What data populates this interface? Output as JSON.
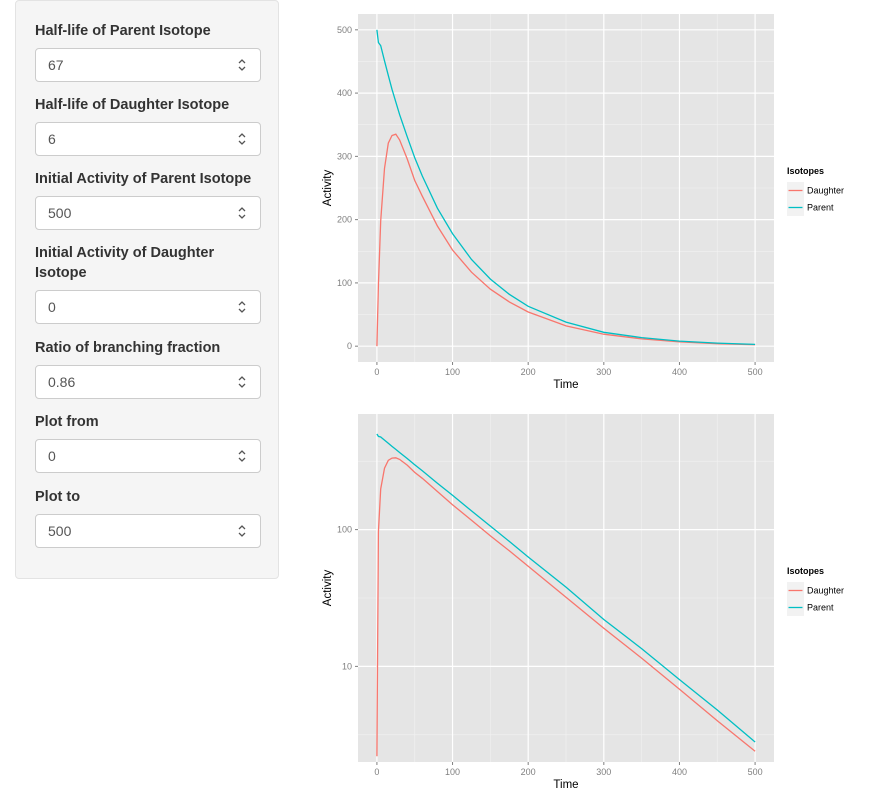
{
  "sidebar": {
    "fields": [
      {
        "label": "Half-life of Parent Isotope",
        "value": "67"
      },
      {
        "label": "Half-life of Daughter Isotope",
        "value": "6"
      },
      {
        "label": "Initial Activity of Parent Isotope",
        "value": "500"
      },
      {
        "label": "Initial Activity of Daughter Isotope",
        "value": "0"
      },
      {
        "label": "Ratio of branching fraction",
        "value": "0.86"
      },
      {
        "label": "Plot from",
        "value": "0"
      },
      {
        "label": "Plot to",
        "value": "500"
      }
    ]
  },
  "colors": {
    "daughter": "#F8766D",
    "parent": "#00BFC4",
    "panel_bg": "#E5E5E5",
    "grid": "#FFFFFF"
  },
  "chart_data": [
    {
      "type": "line",
      "title": "",
      "xlabel": "Time",
      "ylabel": "Activity",
      "xlim": [
        -25,
        525
      ],
      "ylim": [
        -25,
        525
      ],
      "yscale": "linear",
      "x_ticks": [
        0,
        100,
        200,
        300,
        400,
        500
      ],
      "y_ticks": [
        0,
        100,
        200,
        300,
        400,
        500
      ],
      "x_tick_labels": [
        "0",
        "100",
        "200",
        "300",
        "400",
        "500"
      ],
      "y_tick_labels": [
        "0",
        "100",
        "200",
        "300",
        "400",
        "500"
      ],
      "grid": true,
      "legend": {
        "title": "Isotopes",
        "position": "right"
      },
      "x": [
        0,
        2,
        5,
        10,
        15,
        20,
        25,
        30,
        40,
        50,
        60,
        80,
        100,
        125,
        150,
        175,
        200,
        250,
        300,
        350,
        400,
        450,
        500
      ],
      "series": [
        {
          "name": "Daughter",
          "values": [
            0,
            96,
            198,
            281,
            321,
            333,
            335,
            326,
            296,
            262,
            237,
            190,
            152,
            117,
            90,
            70,
            54,
            32,
            19,
            11.5,
            6.8,
            4,
            2.4
          ]
        },
        {
          "name": "Parent",
          "values": [
            500,
            480,
            475,
            451,
            428,
            406,
            386,
            366,
            331,
            298,
            269,
            218,
            178,
            137,
            106,
            82,
            63,
            38,
            22,
            13.5,
            8,
            4.8,
            2.8
          ]
        }
      ]
    },
    {
      "type": "line",
      "title": "",
      "xlabel": "Time",
      "ylabel": "Activity",
      "xlim": [
        -25,
        525
      ],
      "ylim": [
        2,
        700
      ],
      "yscale": "log",
      "x_ticks": [
        0,
        100,
        200,
        300,
        400,
        500
      ],
      "y_ticks": [
        10,
        100
      ],
      "x_tick_labels": [
        "0",
        "100",
        "200",
        "300",
        "400",
        "500"
      ],
      "y_tick_labels": [
        "10",
        "100"
      ],
      "grid": true,
      "legend": {
        "title": "Isotopes",
        "position": "right"
      },
      "x": [
        0,
        2,
        5,
        10,
        15,
        20,
        25,
        30,
        40,
        50,
        60,
        80,
        100,
        125,
        150,
        175,
        200,
        250,
        300,
        350,
        400,
        450,
        500
      ],
      "series": [
        {
          "name": "Daughter",
          "values": [
            2.2,
            96,
            198,
            281,
            321,
            333,
            335,
            326,
            296,
            262,
            237,
            190,
            152,
            117,
            90,
            70,
            54,
            32,
            19,
            11.5,
            6.8,
            4,
            2.4
          ]
        },
        {
          "name": "Parent",
          "values": [
            500,
            480,
            475,
            451,
            428,
            406,
            386,
            366,
            331,
            298,
            269,
            218,
            178,
            137,
            106,
            82,
            63,
            38,
            22,
            13.5,
            8,
            4.8,
            2.8
          ]
        }
      ]
    }
  ]
}
